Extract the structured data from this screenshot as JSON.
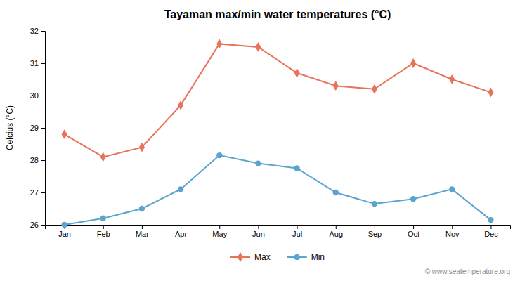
{
  "chart_data": {
    "type": "line",
    "title": "Tayaman max/min water temperatures (°C)",
    "ylabel": "Celcius (°C)",
    "categories": [
      "Jan",
      "Feb",
      "Mar",
      "Apr",
      "May",
      "Jun",
      "Jul",
      "Aug",
      "Sep",
      "Oct",
      "Nov",
      "Dec"
    ],
    "series": [
      {
        "name": "Max",
        "color": "#e8735a",
        "marker": "diamond",
        "values": [
          28.8,
          28.1,
          28.4,
          29.7,
          31.6,
          31.5,
          30.7,
          30.3,
          30.2,
          31.0,
          30.5,
          30.1
        ]
      },
      {
        "name": "Min",
        "color": "#5ba4cf",
        "marker": "circle",
        "values": [
          26.0,
          26.2,
          26.5,
          27.1,
          28.15,
          27.9,
          27.75,
          27.0,
          26.65,
          26.8,
          27.1,
          26.15
        ]
      }
    ],
    "ylim": [
      26,
      32
    ],
    "yticks": [
      26,
      27,
      28,
      29,
      30,
      31,
      32
    ],
    "grid": false,
    "legend": "bottom",
    "annotations": [
      "© www.seatemperature.org"
    ]
  }
}
